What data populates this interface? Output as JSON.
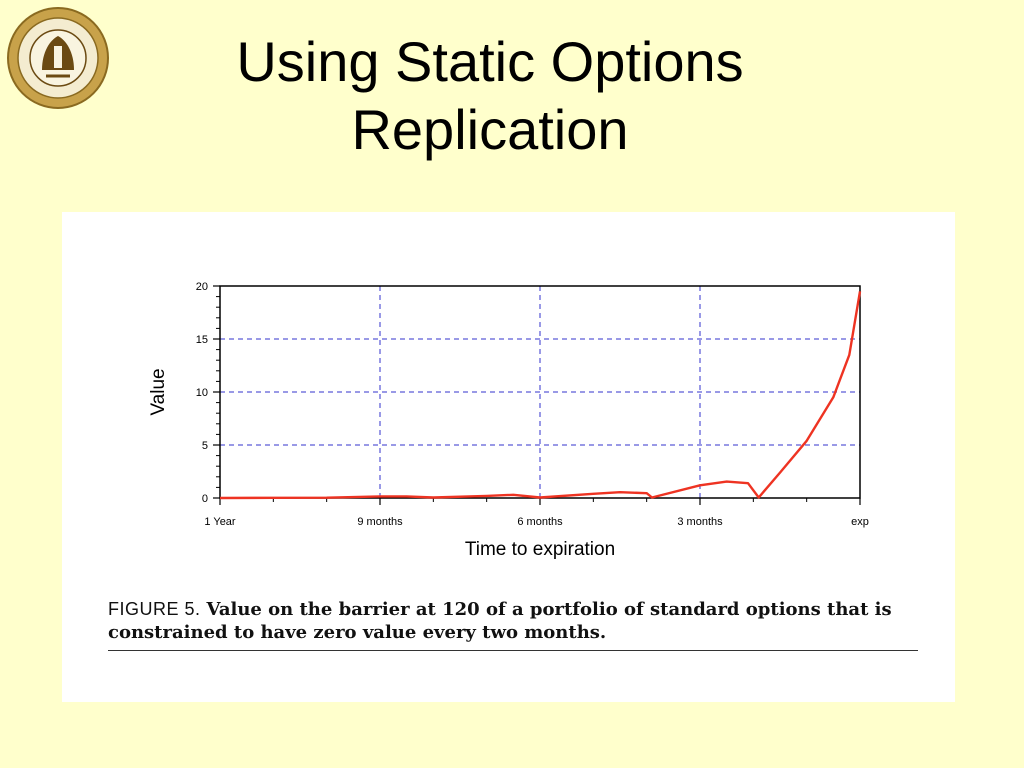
{
  "slide": {
    "title_line1": "Using Static Options",
    "title_line2": "Replication"
  },
  "logo": {
    "icon": "university-seal-icon"
  },
  "caption": {
    "label": "FIGURE 5.",
    "text": "Value on the barrier at 120 of a portfolio of standard options that is constrained to have zero value every two months."
  },
  "colors": {
    "background": "#ffffcc",
    "grid": "#3333cc",
    "series": "#ee3322"
  },
  "chart_data": {
    "type": "line",
    "title": "",
    "xlabel": "Time to expiration",
    "ylabel": "Value",
    "xlim": [
      0,
      12
    ],
    "ylim": [
      0,
      20
    ],
    "x_unit_note": "months elapsed from 1 Year to exp",
    "x_ticks": [
      {
        "value": 0,
        "label": "1 Year"
      },
      {
        "value": 3,
        "label": "9 months"
      },
      {
        "value": 6,
        "label": "6 months"
      },
      {
        "value": 9,
        "label": "3 months"
      },
      {
        "value": 12,
        "label": "exp"
      }
    ],
    "y_ticks": [
      0,
      5,
      10,
      15,
      20
    ],
    "grid": true,
    "series": [
      {
        "name": "",
        "points": [
          [
            0,
            0
          ],
          [
            1,
            0.02
          ],
          [
            2,
            0.03
          ],
          [
            3,
            0.15
          ],
          [
            3.5,
            0.15
          ],
          [
            4,
            0.05
          ],
          [
            5,
            0.2
          ],
          [
            5.5,
            0.3
          ],
          [
            6,
            0.05
          ],
          [
            7,
            0.4
          ],
          [
            7.5,
            0.55
          ],
          [
            8,
            0.45
          ],
          [
            8.1,
            0.05
          ],
          [
            9,
            1.2
          ],
          [
            9.5,
            1.55
          ],
          [
            9.9,
            1.4
          ],
          [
            10.1,
            0.05
          ],
          [
            10.5,
            2.4
          ],
          [
            11,
            5.4
          ],
          [
            11.5,
            9.5
          ],
          [
            11.8,
            13.5
          ],
          [
            12,
            19.5
          ]
        ]
      }
    ]
  }
}
